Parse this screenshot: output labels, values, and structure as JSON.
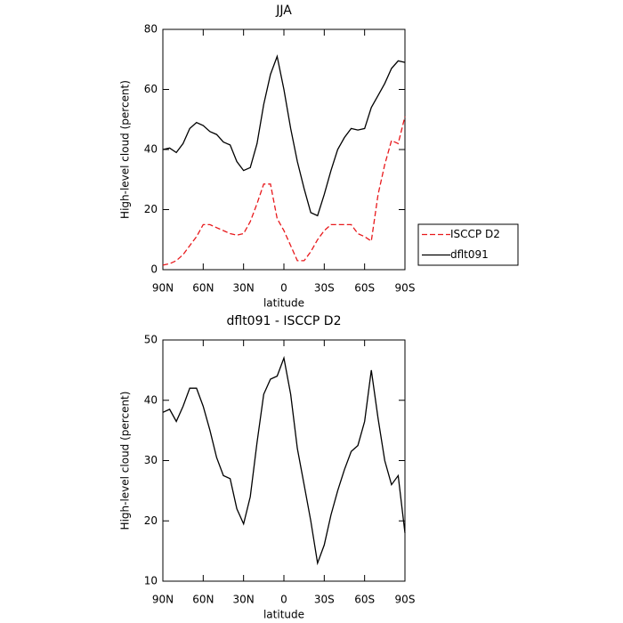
{
  "chart_data": [
    {
      "type": "line",
      "title": "JJA",
      "xlabel": "latitude",
      "ylabel": "High-level cloud (percent)",
      "x": [
        90,
        85,
        80,
        75,
        70,
        65,
        60,
        55,
        50,
        45,
        40,
        35,
        30,
        25,
        20,
        15,
        10,
        5,
        0,
        -5,
        -10,
        -15,
        -20,
        -25,
        -30,
        -35,
        -40,
        -45,
        -50,
        -55,
        -60,
        -65,
        -70,
        -75,
        -80,
        -85,
        -90
      ],
      "xlim": [
        90,
        -90
      ],
      "xticks": [
        {
          "value": 90,
          "label": "90N"
        },
        {
          "value": 60,
          "label": "60N"
        },
        {
          "value": 30,
          "label": "30N"
        },
        0,
        {
          "value": -30,
          "label": "30S"
        },
        {
          "value": -60,
          "label": "60S"
        },
        {
          "value": -90,
          "label": "90S"
        }
      ],
      "ylim": [
        0,
        80
      ],
      "yticks": [
        0,
        20,
        40,
        60,
        80
      ],
      "legend": "right",
      "series": [
        {
          "name": "ISCCP D2",
          "color": "#e8191c",
          "dashed": true,
          "values": [
            1.5,
            2,
            3,
            5,
            8,
            11,
            15,
            15,
            14,
            13,
            12,
            11.5,
            12,
            16,
            22,
            28.5,
            28.5,
            17,
            13,
            8,
            3,
            3,
            6,
            10,
            13,
            15,
            15,
            15,
            15,
            12,
            11,
            9.5,
            25,
            35,
            43,
            42,
            51
          ]
        },
        {
          "name": "dflt091",
          "color": "#000000",
          "dashed": false,
          "values": [
            40,
            40.5,
            39,
            42,
            47,
            49,
            48,
            46,
            45,
            42.5,
            41.5,
            36,
            33,
            34,
            42,
            55,
            65,
            71,
            60,
            47,
            36,
            27,
            19,
            18,
            25,
            33,
            40,
            44,
            47,
            46.5,
            47,
            54,
            58,
            62,
            67,
            69.5,
            69
          ]
        }
      ]
    },
    {
      "type": "line",
      "title": "dflt091 - ISCCP D2",
      "xlabel": "latitude",
      "ylabel": "High-level cloud (percent)",
      "x": [
        90,
        85,
        80,
        75,
        70,
        65,
        60,
        55,
        50,
        45,
        40,
        35,
        30,
        25,
        20,
        15,
        10,
        5,
        0,
        -5,
        -10,
        -15,
        -20,
        -25,
        -30,
        -35,
        -40,
        -45,
        -50,
        -55,
        -60,
        -65,
        -70,
        -75,
        -80,
        -85,
        -90
      ],
      "xlim": [
        90,
        -90
      ],
      "xticks": [
        {
          "value": 90,
          "label": "90N"
        },
        {
          "value": 60,
          "label": "60N"
        },
        {
          "value": 30,
          "label": "30N"
        },
        0,
        {
          "value": -30,
          "label": "30S"
        },
        {
          "value": -60,
          "label": "60S"
        },
        {
          "value": -90,
          "label": "90S"
        }
      ],
      "ylim": [
        10,
        50
      ],
      "yticks": [
        10,
        20,
        30,
        40,
        50
      ],
      "series": [
        {
          "color": "#000000",
          "dashed": false,
          "values": [
            38,
            38.5,
            36.5,
            39,
            42,
            42,
            39,
            35,
            30.5,
            27.5,
            27,
            22,
            19.5,
            24,
            33,
            41,
            43.5,
            44,
            47,
            41,
            32,
            26,
            20,
            13,
            16,
            21,
            25,
            28.5,
            31.5,
            32.5,
            36.5,
            45,
            37,
            30,
            26,
            27.5,
            18
          ]
        }
      ]
    }
  ]
}
